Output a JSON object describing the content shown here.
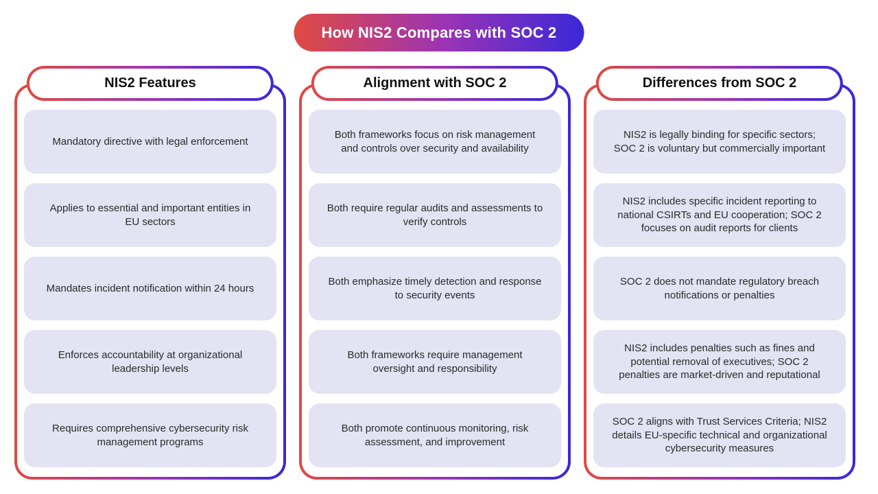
{
  "title": "How NIS2 Compares with SOC 2",
  "colors": {
    "gradient_start": "#e04a42",
    "gradient_mid": "#9b34b4",
    "gradient_end": "#3a28d8",
    "card_bg": "#e3e3f4"
  },
  "columns": [
    {
      "header": "NIS2 Features",
      "cards": [
        "Mandatory directive with legal enforcement",
        "Applies to essential and important entities in EU sectors",
        "Mandates incident notification within 24 hours",
        "Enforces accountability at organizational leadership levels",
        "Requires comprehensive cybersecurity risk management programs"
      ]
    },
    {
      "header": "Alignment with SOC 2",
      "cards": [
        "Both frameworks focus on risk management and controls over security and availability",
        "Both require regular audits and assessments to verify controls",
        "Both emphasize timely detection and response to security events",
        "Both frameworks require management oversight and responsibility",
        "Both promote continuous monitoring, risk assessment, and improvement"
      ]
    },
    {
      "header": "Differences from SOC 2",
      "cards": [
        "NIS2 is legally binding for specific sectors; SOC 2 is voluntary but commercially important",
        "NIS2 includes specific incident reporting to national CSIRTs and EU cooperation; SOC 2 focuses on audit reports for clients",
        "SOC 2 does not mandate regulatory breach notifications or penalties",
        "NIS2 includes penalties such as fines and potential removal of executives; SOC 2 penalties are market-driven and reputational",
        "SOC 2 aligns with Trust Services Criteria; NIS2 details EU-specific technical and organizational cybersecurity measures"
      ]
    }
  ]
}
